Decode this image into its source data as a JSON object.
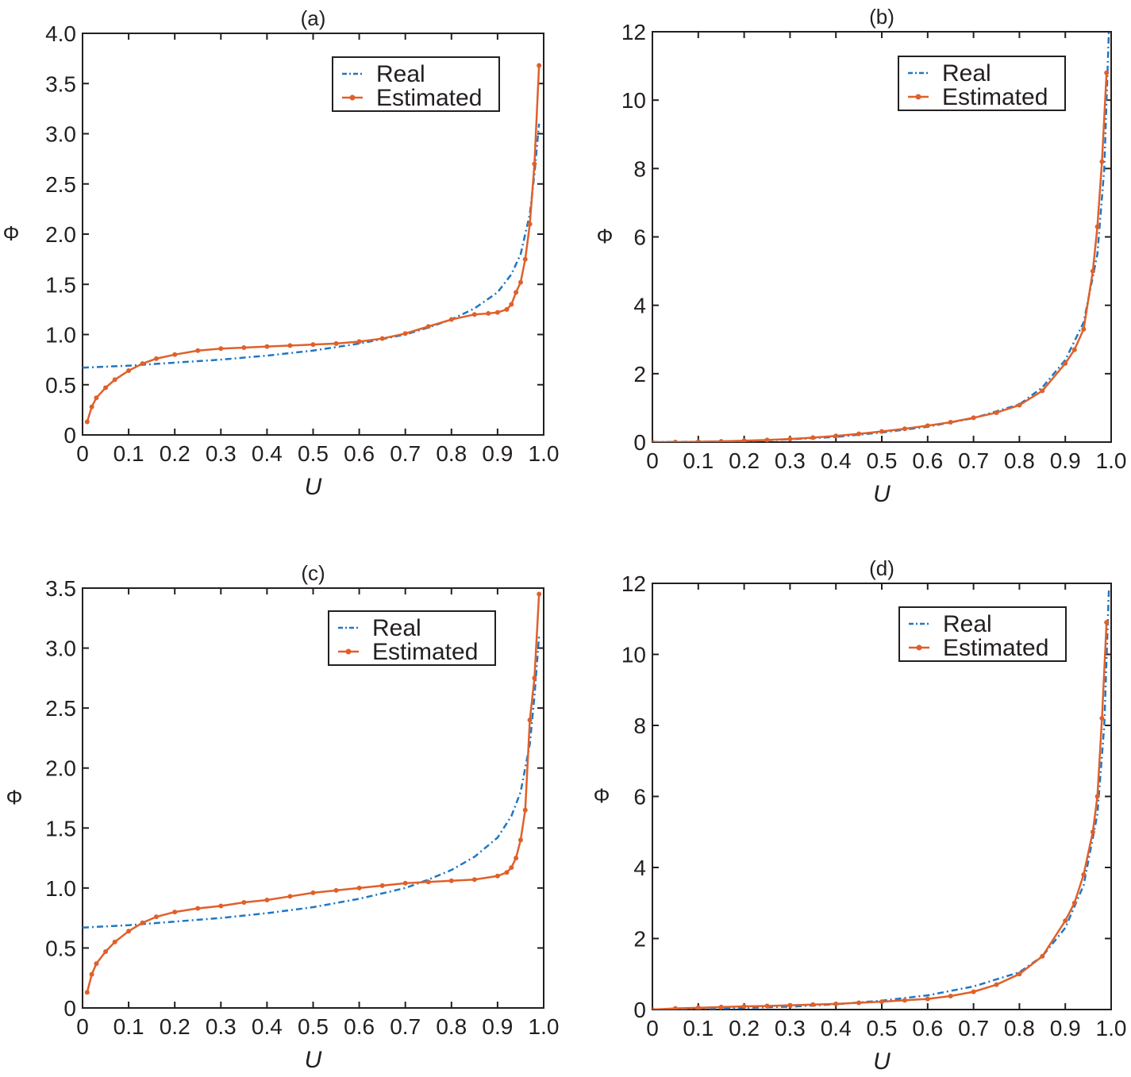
{
  "chart_data": [
    {
      "type": "line",
      "title": "(a)",
      "xlabel": "U",
      "ylabel": "Φ",
      "xlim": [
        0,
        1.0
      ],
      "ylim": [
        0,
        4.0
      ],
      "xticks": [
        "0",
        "0.1",
        "0.2",
        "0.3",
        "0.4",
        "0.5",
        "0.6",
        "0.7",
        "0.8",
        "0.9",
        "1.0"
      ],
      "yticks": [
        "0",
        "0.5",
        "1.0",
        "1.5",
        "2.0",
        "2.5",
        "3.0",
        "3.5",
        "4.0"
      ],
      "legend": "top-right",
      "series": [
        {
          "name": "Real",
          "style": "dash-dot",
          "color": "#1f77c4",
          "x": [
            0,
            0.1,
            0.2,
            0.3,
            0.4,
            0.5,
            0.6,
            0.7,
            0.75,
            0.8,
            0.85,
            0.9,
            0.93,
            0.95,
            0.97,
            0.98,
            0.99
          ],
          "y": [
            0.67,
            0.69,
            0.72,
            0.75,
            0.79,
            0.84,
            0.91,
            1.0,
            1.07,
            1.15,
            1.26,
            1.42,
            1.6,
            1.8,
            2.2,
            2.6,
            3.1
          ]
        },
        {
          "name": "Estimated",
          "style": "solid-marker",
          "color": "#e0602a",
          "x": [
            0.01,
            0.02,
            0.03,
            0.05,
            0.07,
            0.1,
            0.13,
            0.16,
            0.2,
            0.25,
            0.3,
            0.35,
            0.4,
            0.45,
            0.5,
            0.55,
            0.6,
            0.65,
            0.7,
            0.75,
            0.8,
            0.85,
            0.88,
            0.9,
            0.92,
            0.93,
            0.94,
            0.95,
            0.96,
            0.97,
            0.98,
            0.99
          ],
          "y": [
            0.13,
            0.28,
            0.37,
            0.47,
            0.55,
            0.64,
            0.71,
            0.76,
            0.8,
            0.84,
            0.86,
            0.87,
            0.88,
            0.89,
            0.9,
            0.91,
            0.93,
            0.96,
            1.01,
            1.08,
            1.15,
            1.2,
            1.21,
            1.22,
            1.25,
            1.3,
            1.42,
            1.52,
            1.75,
            2.1,
            2.7,
            3.68
          ]
        }
      ]
    },
    {
      "type": "line",
      "title": "(b)",
      "xlabel": "U",
      "ylabel": "Φ",
      "xlim": [
        0,
        1.0
      ],
      "ylim": [
        0,
        12
      ],
      "xticks": [
        "0",
        "0.1",
        "0.2",
        "0.3",
        "0.4",
        "0.5",
        "0.6",
        "0.7",
        "0.8",
        "0.9",
        "1.0"
      ],
      "yticks": [
        "0",
        "2",
        "4",
        "6",
        "8",
        "10",
        "12"
      ],
      "legend": "top-right",
      "series": [
        {
          "name": "Real",
          "style": "dash-dot",
          "color": "#1f77c4",
          "x": [
            0,
            0.1,
            0.2,
            0.3,
            0.4,
            0.5,
            0.6,
            0.7,
            0.8,
            0.85,
            0.9,
            0.94,
            0.97,
            0.985,
            0.995
          ],
          "y": [
            0,
            0.01,
            0.03,
            0.08,
            0.15,
            0.28,
            0.45,
            0.7,
            1.1,
            1.6,
            2.4,
            3.5,
            5.5,
            8,
            12
          ]
        },
        {
          "name": "Estimated",
          "style": "solid-marker",
          "color": "#e0602a",
          "x": [
            0,
            0.05,
            0.1,
            0.15,
            0.2,
            0.25,
            0.3,
            0.35,
            0.4,
            0.45,
            0.5,
            0.55,
            0.6,
            0.65,
            0.7,
            0.75,
            0.8,
            0.85,
            0.9,
            0.92,
            0.94,
            0.96,
            0.97,
            0.98,
            0.99
          ],
          "y": [
            0,
            0,
            0.01,
            0.02,
            0.04,
            0.06,
            0.09,
            0.13,
            0.18,
            0.24,
            0.31,
            0.39,
            0.48,
            0.58,
            0.71,
            0.86,
            1.08,
            1.5,
            2.3,
            2.7,
            3.3,
            5.0,
            6.3,
            8.2,
            10.8
          ]
        }
      ]
    },
    {
      "type": "line",
      "title": "(c)",
      "xlabel": "U",
      "ylabel": "Φ",
      "xlim": [
        0,
        1.0
      ],
      "ylim": [
        0,
        3.5
      ],
      "xticks": [
        "0",
        "0.1",
        "0.2",
        "0.3",
        "0.4",
        "0.5",
        "0.6",
        "0.7",
        "0.8",
        "0.9",
        "1.0"
      ],
      "yticks": [
        "0",
        "0.5",
        "1.0",
        "1.5",
        "2.0",
        "2.5",
        "3.0",
        "3.5"
      ],
      "legend": "top-right",
      "series": [
        {
          "name": "Real",
          "style": "dash-dot",
          "color": "#1f77c4",
          "x": [
            0,
            0.1,
            0.2,
            0.3,
            0.4,
            0.5,
            0.6,
            0.7,
            0.75,
            0.8,
            0.85,
            0.9,
            0.93,
            0.95,
            0.97,
            0.98,
            0.99
          ],
          "y": [
            0.67,
            0.69,
            0.72,
            0.75,
            0.79,
            0.84,
            0.91,
            1.0,
            1.07,
            1.15,
            1.26,
            1.42,
            1.6,
            1.8,
            2.2,
            2.6,
            3.1
          ]
        },
        {
          "name": "Estimated",
          "style": "solid-marker",
          "color": "#e0602a",
          "x": [
            0.01,
            0.02,
            0.03,
            0.05,
            0.07,
            0.1,
            0.13,
            0.16,
            0.2,
            0.25,
            0.3,
            0.35,
            0.4,
            0.45,
            0.5,
            0.55,
            0.6,
            0.65,
            0.7,
            0.75,
            0.8,
            0.85,
            0.9,
            0.92,
            0.93,
            0.94,
            0.95,
            0.96,
            0.97,
            0.98,
            0.99
          ],
          "y": [
            0.13,
            0.28,
            0.37,
            0.47,
            0.55,
            0.64,
            0.71,
            0.76,
            0.8,
            0.83,
            0.85,
            0.88,
            0.9,
            0.93,
            0.96,
            0.98,
            1.0,
            1.02,
            1.04,
            1.05,
            1.06,
            1.07,
            1.1,
            1.13,
            1.17,
            1.25,
            1.4,
            1.65,
            2.4,
            2.75,
            3.45
          ]
        }
      ]
    },
    {
      "type": "line",
      "title": "(d)",
      "xlabel": "U",
      "ylabel": "Φ",
      "xlim": [
        0,
        1.0
      ],
      "ylim": [
        0,
        12
      ],
      "xticks": [
        "0",
        "0.1",
        "0.2",
        "0.3",
        "0.4",
        "0.5",
        "0.6",
        "0.7",
        "0.8",
        "0.9",
        "1.0"
      ],
      "yticks": [
        "0",
        "2",
        "4",
        "6",
        "8",
        "10",
        "12"
      ],
      "legend": "top-right",
      "series": [
        {
          "name": "Real",
          "style": "dash-dot",
          "color": "#1f77c4",
          "x": [
            0,
            0.1,
            0.2,
            0.3,
            0.4,
            0.5,
            0.6,
            0.7,
            0.8,
            0.85,
            0.9,
            0.94,
            0.97,
            0.985,
            0.995
          ],
          "y": [
            0,
            0.02,
            0.05,
            0.08,
            0.15,
            0.25,
            0.4,
            0.65,
            1.05,
            1.5,
            2.3,
            3.5,
            5.5,
            8,
            11.8
          ]
        },
        {
          "name": "Estimated",
          "style": "solid-marker",
          "color": "#e0602a",
          "x": [
            0,
            0.05,
            0.1,
            0.15,
            0.2,
            0.25,
            0.3,
            0.35,
            0.4,
            0.45,
            0.5,
            0.55,
            0.6,
            0.65,
            0.7,
            0.75,
            0.8,
            0.85,
            0.9,
            0.92,
            0.94,
            0.96,
            0.97,
            0.98,
            0.99
          ],
          "y": [
            0,
            0.03,
            0.05,
            0.07,
            0.09,
            0.1,
            0.12,
            0.14,
            0.16,
            0.19,
            0.22,
            0.26,
            0.3,
            0.38,
            0.5,
            0.7,
            1.0,
            1.5,
            2.5,
            3.0,
            3.8,
            5.0,
            6.0,
            8.2,
            10.9
          ]
        }
      ]
    }
  ]
}
